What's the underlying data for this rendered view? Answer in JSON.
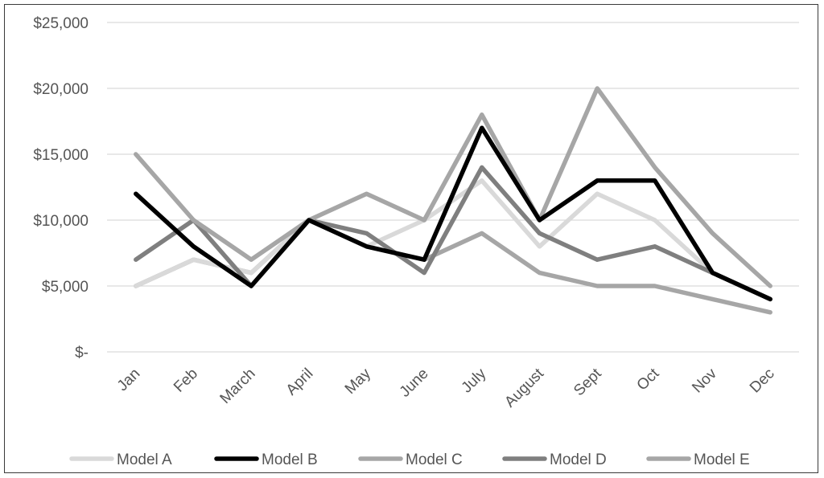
{
  "chart_data": {
    "type": "line",
    "title": "",
    "xlabel": "",
    "ylabel": "",
    "categories": [
      "Jan",
      "Feb",
      "March",
      "April",
      "May",
      "June",
      "July",
      "August",
      "Sept",
      "Oct",
      "Nov",
      "Dec"
    ],
    "ylim": [
      0,
      25000
    ],
    "yticks": [
      0,
      5000,
      10000,
      15000,
      20000,
      25000
    ],
    "ytick_labels": [
      "$-",
      "$5,000",
      "$10,000",
      "$15,000",
      "$20,000",
      "$25,000"
    ],
    "grid": true,
    "legend_position": "bottom",
    "series": [
      {
        "name": "Model A",
        "color": "#d9d9d9",
        "values": [
          5000,
          7000,
          6000,
          10000,
          8000,
          10000,
          13000,
          8000,
          12000,
          10000,
          6000,
          4000
        ]
      },
      {
        "name": "Model B",
        "color": "#000000",
        "values": [
          12000,
          8000,
          5000,
          10000,
          8000,
          7000,
          17000,
          10000,
          13000,
          13000,
          6000,
          4000
        ]
      },
      {
        "name": "Model C",
        "color": "#a6a6a6",
        "values": [
          5000,
          7000,
          6000,
          10000,
          8000,
          7000,
          9000,
          6000,
          5000,
          5000,
          4000,
          3000
        ]
      },
      {
        "name": "Model D",
        "color": "#7f7f7f",
        "values": [
          7000,
          10000,
          5000,
          10000,
          9000,
          6000,
          14000,
          9000,
          7000,
          8000,
          6000,
          4000
        ]
      },
      {
        "name": "Model E",
        "color": "#a6a6a6",
        "values": [
          15000,
          10000,
          7000,
          10000,
          12000,
          10000,
          18000,
          10000,
          20000,
          14000,
          9000,
          5000
        ]
      }
    ]
  }
}
